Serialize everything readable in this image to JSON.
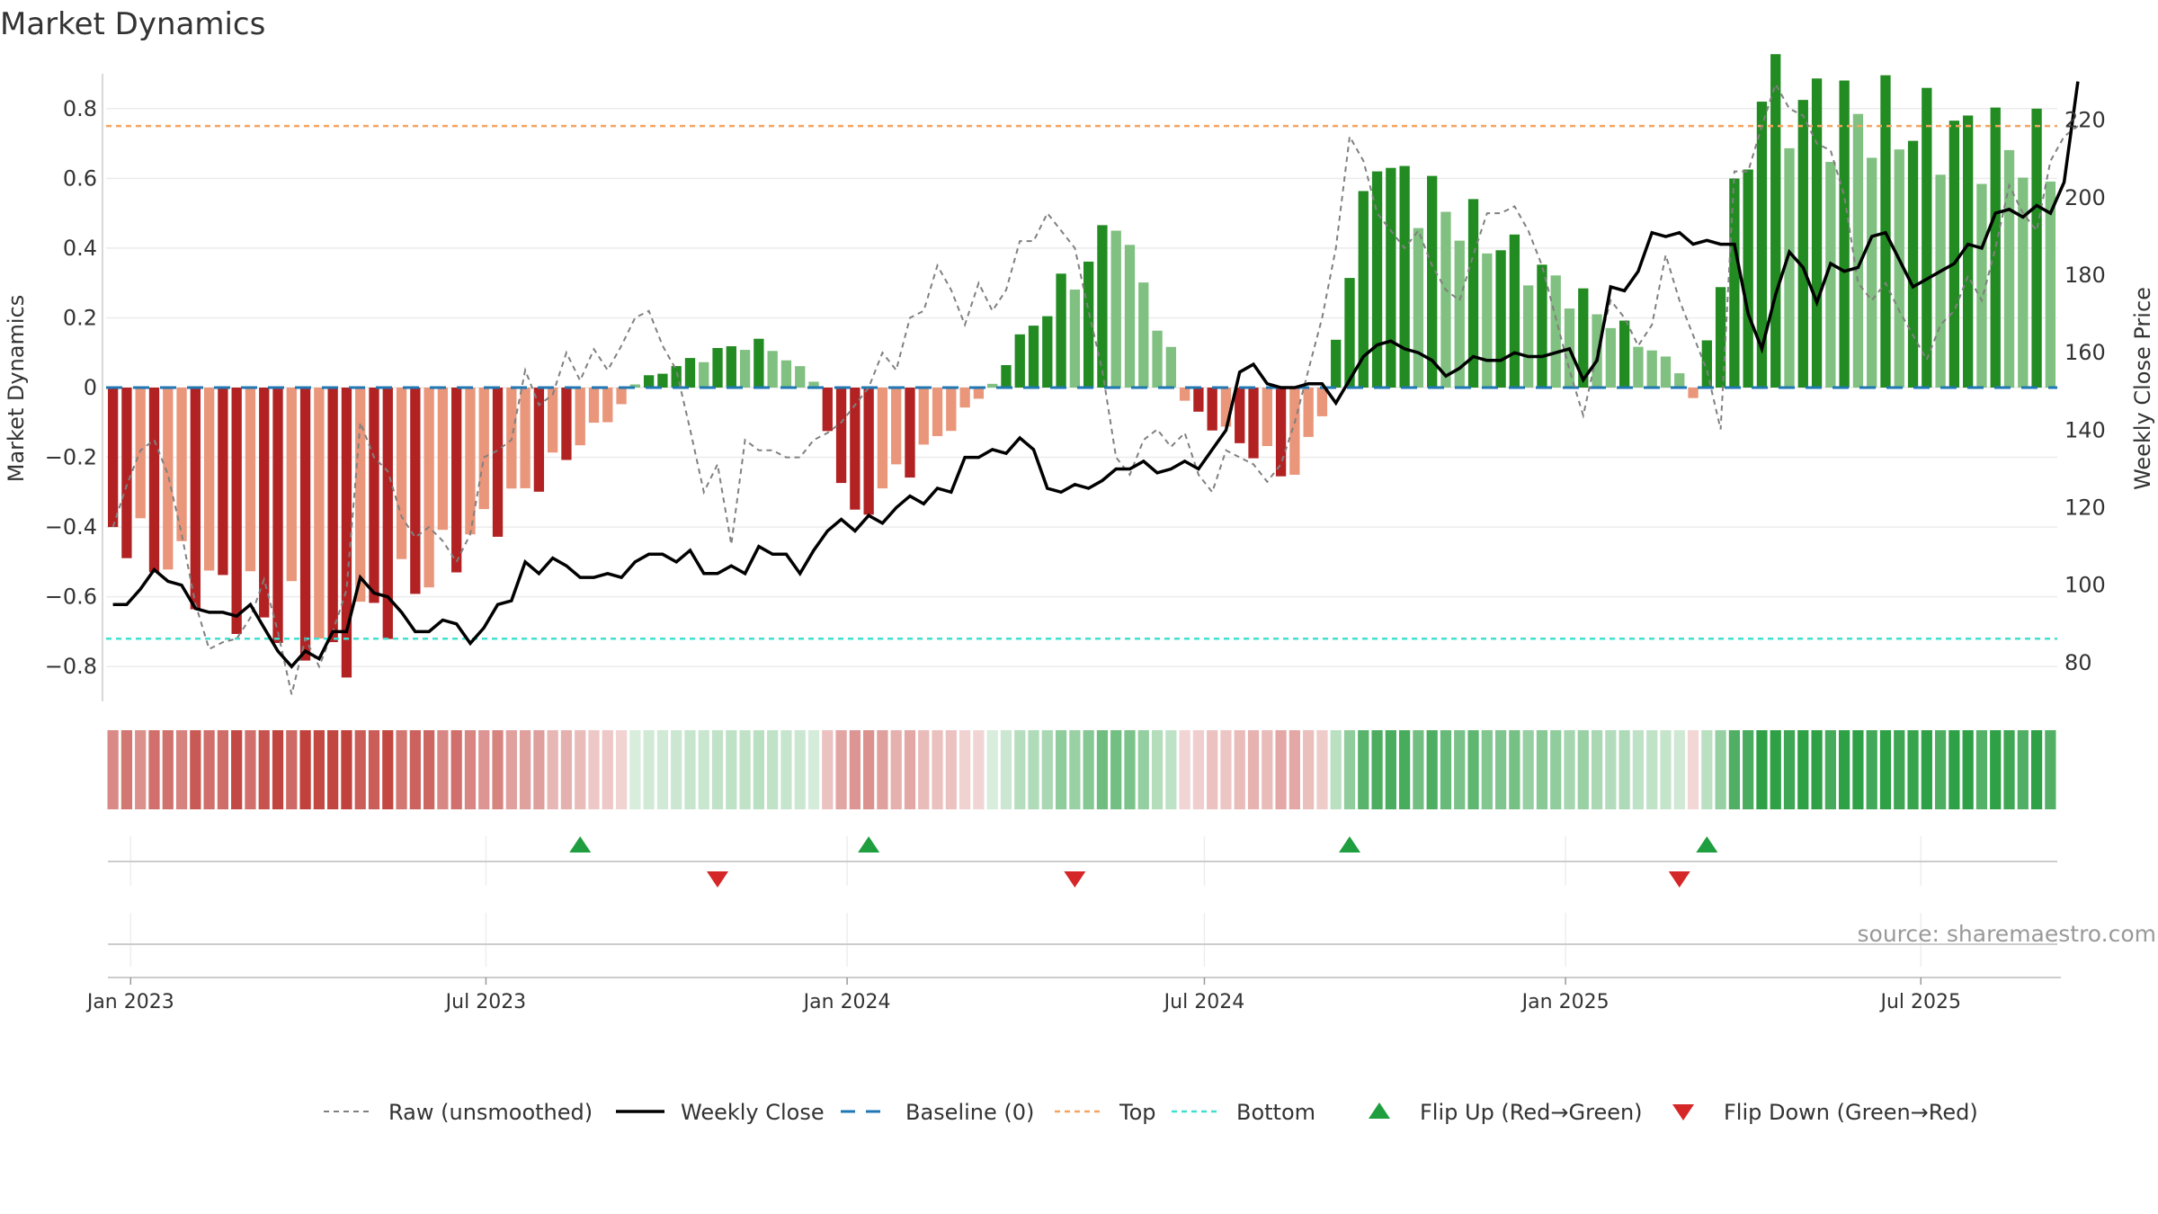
{
  "page_title": "Market Dynamics",
  "source_text": "source: sharemaestro.com",
  "colors": {
    "strong_red": "#b22222",
    "light_red": "#e9967a",
    "strong_green": "#228b22",
    "light_green": "#80c080",
    "close": "#000000",
    "raw": "#808080",
    "baseline": "#1f77b4",
    "top": "#f4a460",
    "bottom": "#40e0d0",
    "flip_up": "#1e9e3e",
    "flip_down": "#d62728"
  },
  "chart_data": {
    "type": "bar",
    "ylabel": "Market Dynamics",
    "y2label": "Weekly Close Price",
    "ylim": [
      -0.9,
      0.9
    ],
    "y2lim": [
      70,
      232
    ],
    "yticks": [
      "0.8",
      "0.6",
      "0.4",
      "0.2",
      "0",
      "−0.2",
      "−0.4",
      "−0.6",
      "−0.8"
    ],
    "y2ticks": [
      "220",
      "200",
      "180",
      "160",
      "140",
      "120",
      "100",
      "80"
    ],
    "top_line": 0.75,
    "bottom_line": -0.72,
    "baseline": 0,
    "start_date": "2022-12-23",
    "week_count": 142,
    "date_ticks": [
      {
        "label": "Jan 2023",
        "date": "2023-01-01"
      },
      {
        "label": "Jul 2023",
        "date": "2023-07-01"
      },
      {
        "label": "Jan 2024",
        "date": "2024-01-01"
      },
      {
        "label": "Jul 2024",
        "date": "2024-07-01"
      },
      {
        "label": "Jan 2025",
        "date": "2025-01-01"
      },
      {
        "label": "Jul 2025",
        "date": "2025-07-01"
      }
    ],
    "segments": [
      {
        "from": 0,
        "to": 37,
        "sign": -1,
        "peak": -0.73,
        "peak_at": 16,
        "start": -0.4,
        "end": -0.05
      },
      {
        "from": 38,
        "to": 51,
        "sign": 1,
        "peak": 0.14,
        "peak_at": 47,
        "start": 0.01,
        "end": 0.02
      },
      {
        "from": 52,
        "to": 63,
        "sign": -1,
        "peak": -0.35,
        "peak_at": 54,
        "start": -0.12,
        "end": -0.03
      },
      {
        "from": 64,
        "to": 77,
        "sign": 1,
        "peak": 0.45,
        "peak_at": 73,
        "start": 0.01,
        "end": 0.1
      },
      {
        "from": 78,
        "to": 88,
        "sign": -1,
        "peak": -0.25,
        "peak_at": 86,
        "start": -0.04,
        "end": -0.07
      },
      {
        "from": 89,
        "to": 114,
        "sign": 1,
        "peak": 0.62,
        "peak_at": 92,
        "start": 0.15,
        "end": 0.05
      },
      {
        "from": 115,
        "to": 115,
        "sign": -1,
        "peak": -0.03,
        "peak_at": 115,
        "start": -0.03,
        "end": -0.03
      },
      {
        "from": 116,
        "to": 141,
        "sign": 1,
        "peak": 0.82,
        "peak_at": 120,
        "start": 0.13,
        "end": 0.67
      }
    ],
    "flip_up_weeks": [
      34,
      55,
      90,
      116
    ],
    "flip_down_weeks": [
      44,
      70,
      114
    ],
    "close_prices": [
      [
        0,
        95
      ],
      [
        2,
        95
      ],
      [
        4,
        99
      ],
      [
        6,
        104
      ],
      [
        8,
        101
      ],
      [
        10,
        100
      ],
      [
        12,
        94
      ],
      [
        14,
        93
      ],
      [
        16,
        93
      ],
      [
        18,
        92
      ],
      [
        20,
        95
      ],
      [
        22,
        89
      ],
      [
        24,
        83
      ],
      [
        26,
        79
      ],
      [
        28,
        83
      ],
      [
        30,
        81
      ],
      [
        32,
        88
      ],
      [
        34,
        88
      ],
      [
        36,
        102
      ],
      [
        38,
        98
      ],
      [
        40,
        97
      ],
      [
        42,
        93
      ],
      [
        44,
        88
      ],
      [
        46,
        88
      ],
      [
        48,
        91
      ],
      [
        50,
        90
      ],
      [
        52,
        85
      ],
      [
        54,
        89
      ],
      [
        56,
        95
      ],
      [
        58,
        96
      ],
      [
        60,
        106
      ],
      [
        62,
        103
      ],
      [
        64,
        107
      ],
      [
        66,
        105
      ],
      [
        68,
        102
      ],
      [
        70,
        102
      ],
      [
        72,
        103
      ],
      [
        74,
        102
      ],
      [
        76,
        106
      ],
      [
        78,
        108
      ],
      [
        80,
        108
      ],
      [
        82,
        106
      ],
      [
        84,
        109
      ],
      [
        86,
        103
      ],
      [
        88,
        103
      ],
      [
        90,
        105
      ],
      [
        92,
        103
      ],
      [
        94,
        110
      ],
      [
        96,
        108
      ],
      [
        98,
        108
      ],
      [
        100,
        103
      ],
      [
        102,
        109
      ],
      [
        104,
        114
      ],
      [
        106,
        117
      ],
      [
        108,
        114
      ],
      [
        110,
        118
      ],
      [
        112,
        116
      ],
      [
        114,
        120
      ],
      [
        116,
        123
      ],
      [
        118,
        121
      ],
      [
        120,
        125
      ],
      [
        122,
        124
      ],
      [
        124,
        133
      ],
      [
        126,
        133
      ],
      [
        128,
        135
      ],
      [
        130,
        134
      ],
      [
        132,
        138
      ],
      [
        134,
        135
      ],
      [
        136,
        125
      ],
      [
        138,
        124
      ],
      [
        140,
        126
      ],
      [
        142,
        125
      ],
      [
        144,
        127
      ],
      [
        146,
        130
      ],
      [
        148,
        130
      ],
      [
        150,
        132
      ],
      [
        152,
        129
      ],
      [
        154,
        130
      ],
      [
        156,
        132
      ],
      [
        158,
        130
      ],
      [
        160,
        135
      ],
      [
        162,
        140
      ],
      [
        164,
        155
      ],
      [
        166,
        157
      ],
      [
        168,
        152
      ],
      [
        170,
        151
      ],
      [
        172,
        151
      ],
      [
        174,
        152
      ],
      [
        176,
        152
      ],
      [
        178,
        147
      ],
      [
        180,
        153
      ],
      [
        182,
        159
      ],
      [
        184,
        162
      ],
      [
        186,
        163
      ],
      [
        188,
        161
      ],
      [
        190,
        160
      ],
      [
        192,
        158
      ],
      [
        194,
        154
      ],
      [
        196,
        156
      ],
      [
        198,
        159
      ],
      [
        200,
        158
      ],
      [
        202,
        158
      ],
      [
        204,
        160
      ],
      [
        206,
        159
      ],
      [
        208,
        159
      ],
      [
        210,
        160
      ],
      [
        212,
        161
      ],
      [
        214,
        153
      ],
      [
        216,
        158
      ],
      [
        218,
        177
      ],
      [
        220,
        176
      ],
      [
        222,
        181
      ],
      [
        224,
        191
      ],
      [
        226,
        190
      ],
      [
        228,
        191
      ],
      [
        230,
        188
      ],
      [
        232,
        189
      ],
      [
        234,
        188
      ],
      [
        236,
        188
      ],
      [
        238,
        170
      ],
      [
        240,
        161
      ],
      [
        242,
        175
      ],
      [
        244,
        186
      ],
      [
        246,
        182
      ],
      [
        248,
        173
      ],
      [
        250,
        183
      ],
      [
        252,
        181
      ],
      [
        254,
        182
      ],
      [
        256,
        190
      ],
      [
        258,
        191
      ],
      [
        260,
        184
      ],
      [
        262,
        177
      ],
      [
        264,
        179
      ],
      [
        266,
        181
      ],
      [
        268,
        183
      ],
      [
        270,
        188
      ],
      [
        272,
        187
      ],
      [
        274,
        196
      ],
      [
        276,
        197
      ],
      [
        278,
        195
      ],
      [
        280,
        198
      ],
      [
        282,
        196
      ],
      [
        284,
        204
      ],
      [
        286,
        230
      ]
    ],
    "raw_values": [
      [
        0,
        -0.4
      ],
      [
        2,
        -0.28
      ],
      [
        4,
        -0.18
      ],
      [
        6,
        -0.15
      ],
      [
        8,
        -0.25
      ],
      [
        10,
        -0.42
      ],
      [
        12,
        -0.62
      ],
      [
        14,
        -0.75
      ],
      [
        16,
        -0.73
      ],
      [
        18,
        -0.72
      ],
      [
        20,
        -0.66
      ],
      [
        22,
        -0.55
      ],
      [
        24,
        -0.7
      ],
      [
        26,
        -0.88
      ],
      [
        28,
        -0.72
      ],
      [
        30,
        -0.8
      ],
      [
        32,
        -0.7
      ],
      [
        34,
        -0.58
      ],
      [
        36,
        -0.1
      ],
      [
        38,
        -0.2
      ],
      [
        40,
        -0.24
      ],
      [
        42,
        -0.37
      ],
      [
        44,
        -0.43
      ],
      [
        46,
        -0.4
      ],
      [
        48,
        -0.44
      ],
      [
        50,
        -0.5
      ],
      [
        52,
        -0.42
      ],
      [
        54,
        -0.2
      ],
      [
        56,
        -0.18
      ],
      [
        58,
        -0.15
      ],
      [
        60,
        0.05
      ],
      [
        62,
        -0.05
      ],
      [
        64,
        -0.02
      ],
      [
        66,
        0.1
      ],
      [
        68,
        0.02
      ],
      [
        70,
        0.11
      ],
      [
        72,
        0.05
      ],
      [
        74,
        0.12
      ],
      [
        76,
        0.2
      ],
      [
        78,
        0.22
      ],
      [
        80,
        0.12
      ],
      [
        82,
        0.05
      ],
      [
        84,
        -0.12
      ],
      [
        86,
        -0.3
      ],
      [
        88,
        -0.22
      ],
      [
        90,
        -0.45
      ],
      [
        92,
        -0.15
      ],
      [
        94,
        -0.18
      ],
      [
        96,
        -0.18
      ],
      [
        98,
        -0.2
      ],
      [
        100,
        -0.2
      ],
      [
        102,
        -0.15
      ],
      [
        104,
        -0.13
      ],
      [
        106,
        -0.1
      ],
      [
        108,
        -0.05
      ],
      [
        110,
        0.0
      ],
      [
        112,
        0.1
      ],
      [
        114,
        0.05
      ],
      [
        116,
        0.2
      ],
      [
        118,
        0.22
      ],
      [
        120,
        0.35
      ],
      [
        122,
        0.28
      ],
      [
        124,
        0.18
      ],
      [
        126,
        0.3
      ],
      [
        128,
        0.22
      ],
      [
        130,
        0.28
      ],
      [
        132,
        0.42
      ],
      [
        134,
        0.42
      ],
      [
        136,
        0.5
      ],
      [
        138,
        0.45
      ],
      [
        140,
        0.4
      ],
      [
        142,
        0.22
      ],
      [
        144,
        0.05
      ],
      [
        146,
        -0.2
      ],
      [
        148,
        -0.25
      ],
      [
        150,
        -0.15
      ],
      [
        152,
        -0.12
      ],
      [
        154,
        -0.17
      ],
      [
        156,
        -0.13
      ],
      [
        158,
        -0.25
      ],
      [
        160,
        -0.3
      ],
      [
        162,
        -0.18
      ],
      [
        164,
        -0.2
      ],
      [
        166,
        -0.22
      ],
      [
        168,
        -0.27
      ],
      [
        170,
        -0.22
      ],
      [
        172,
        -0.1
      ],
      [
        174,
        0.05
      ],
      [
        176,
        0.2
      ],
      [
        178,
        0.4
      ],
      [
        180,
        0.72
      ],
      [
        182,
        0.65
      ],
      [
        184,
        0.5
      ],
      [
        186,
        0.45
      ],
      [
        188,
        0.4
      ],
      [
        190,
        0.45
      ],
      [
        192,
        0.35
      ],
      [
        194,
        0.28
      ],
      [
        196,
        0.25
      ],
      [
        198,
        0.38
      ],
      [
        200,
        0.5
      ],
      [
        202,
        0.5
      ],
      [
        204,
        0.52
      ],
      [
        206,
        0.45
      ],
      [
        208,
        0.35
      ],
      [
        210,
        0.2
      ],
      [
        212,
        0.05
      ],
      [
        214,
        -0.08
      ],
      [
        216,
        0.1
      ],
      [
        218,
        0.25
      ],
      [
        220,
        0.2
      ],
      [
        222,
        0.12
      ],
      [
        224,
        0.18
      ],
      [
        226,
        0.38
      ],
      [
        228,
        0.25
      ],
      [
        230,
        0.15
      ],
      [
        232,
        0.05
      ],
      [
        234,
        -0.12
      ],
      [
        236,
        0.62
      ],
      [
        238,
        0.62
      ],
      [
        240,
        0.75
      ],
      [
        242,
        0.87
      ],
      [
        244,
        0.8
      ],
      [
        246,
        0.78
      ],
      [
        248,
        0.7
      ],
      [
        250,
        0.68
      ],
      [
        252,
        0.55
      ],
      [
        254,
        0.3
      ],
      [
        256,
        0.25
      ],
      [
        258,
        0.3
      ],
      [
        260,
        0.22
      ],
      [
        262,
        0.15
      ],
      [
        264,
        0.08
      ],
      [
        266,
        0.18
      ],
      [
        268,
        0.22
      ],
      [
        270,
        0.32
      ],
      [
        272,
        0.25
      ],
      [
        274,
        0.4
      ],
      [
        276,
        0.58
      ],
      [
        278,
        0.5
      ],
      [
        280,
        0.45
      ],
      [
        282,
        0.65
      ],
      [
        284,
        0.72
      ],
      [
        286,
        0.75
      ]
    ]
  },
  "legend": [
    {
      "label": "Raw (unsmoothed)",
      "style": "raw"
    },
    {
      "label": "Weekly Close",
      "style": "close"
    },
    {
      "label": "Baseline (0)",
      "style": "baseline"
    },
    {
      "label": "Top",
      "style": "top"
    },
    {
      "label": "Bottom",
      "style": "bottom"
    },
    {
      "label": "Flip Up (Red→Green)",
      "style": "flip_up"
    },
    {
      "label": "Flip Down (Green→Red)",
      "style": "flip_down"
    }
  ]
}
